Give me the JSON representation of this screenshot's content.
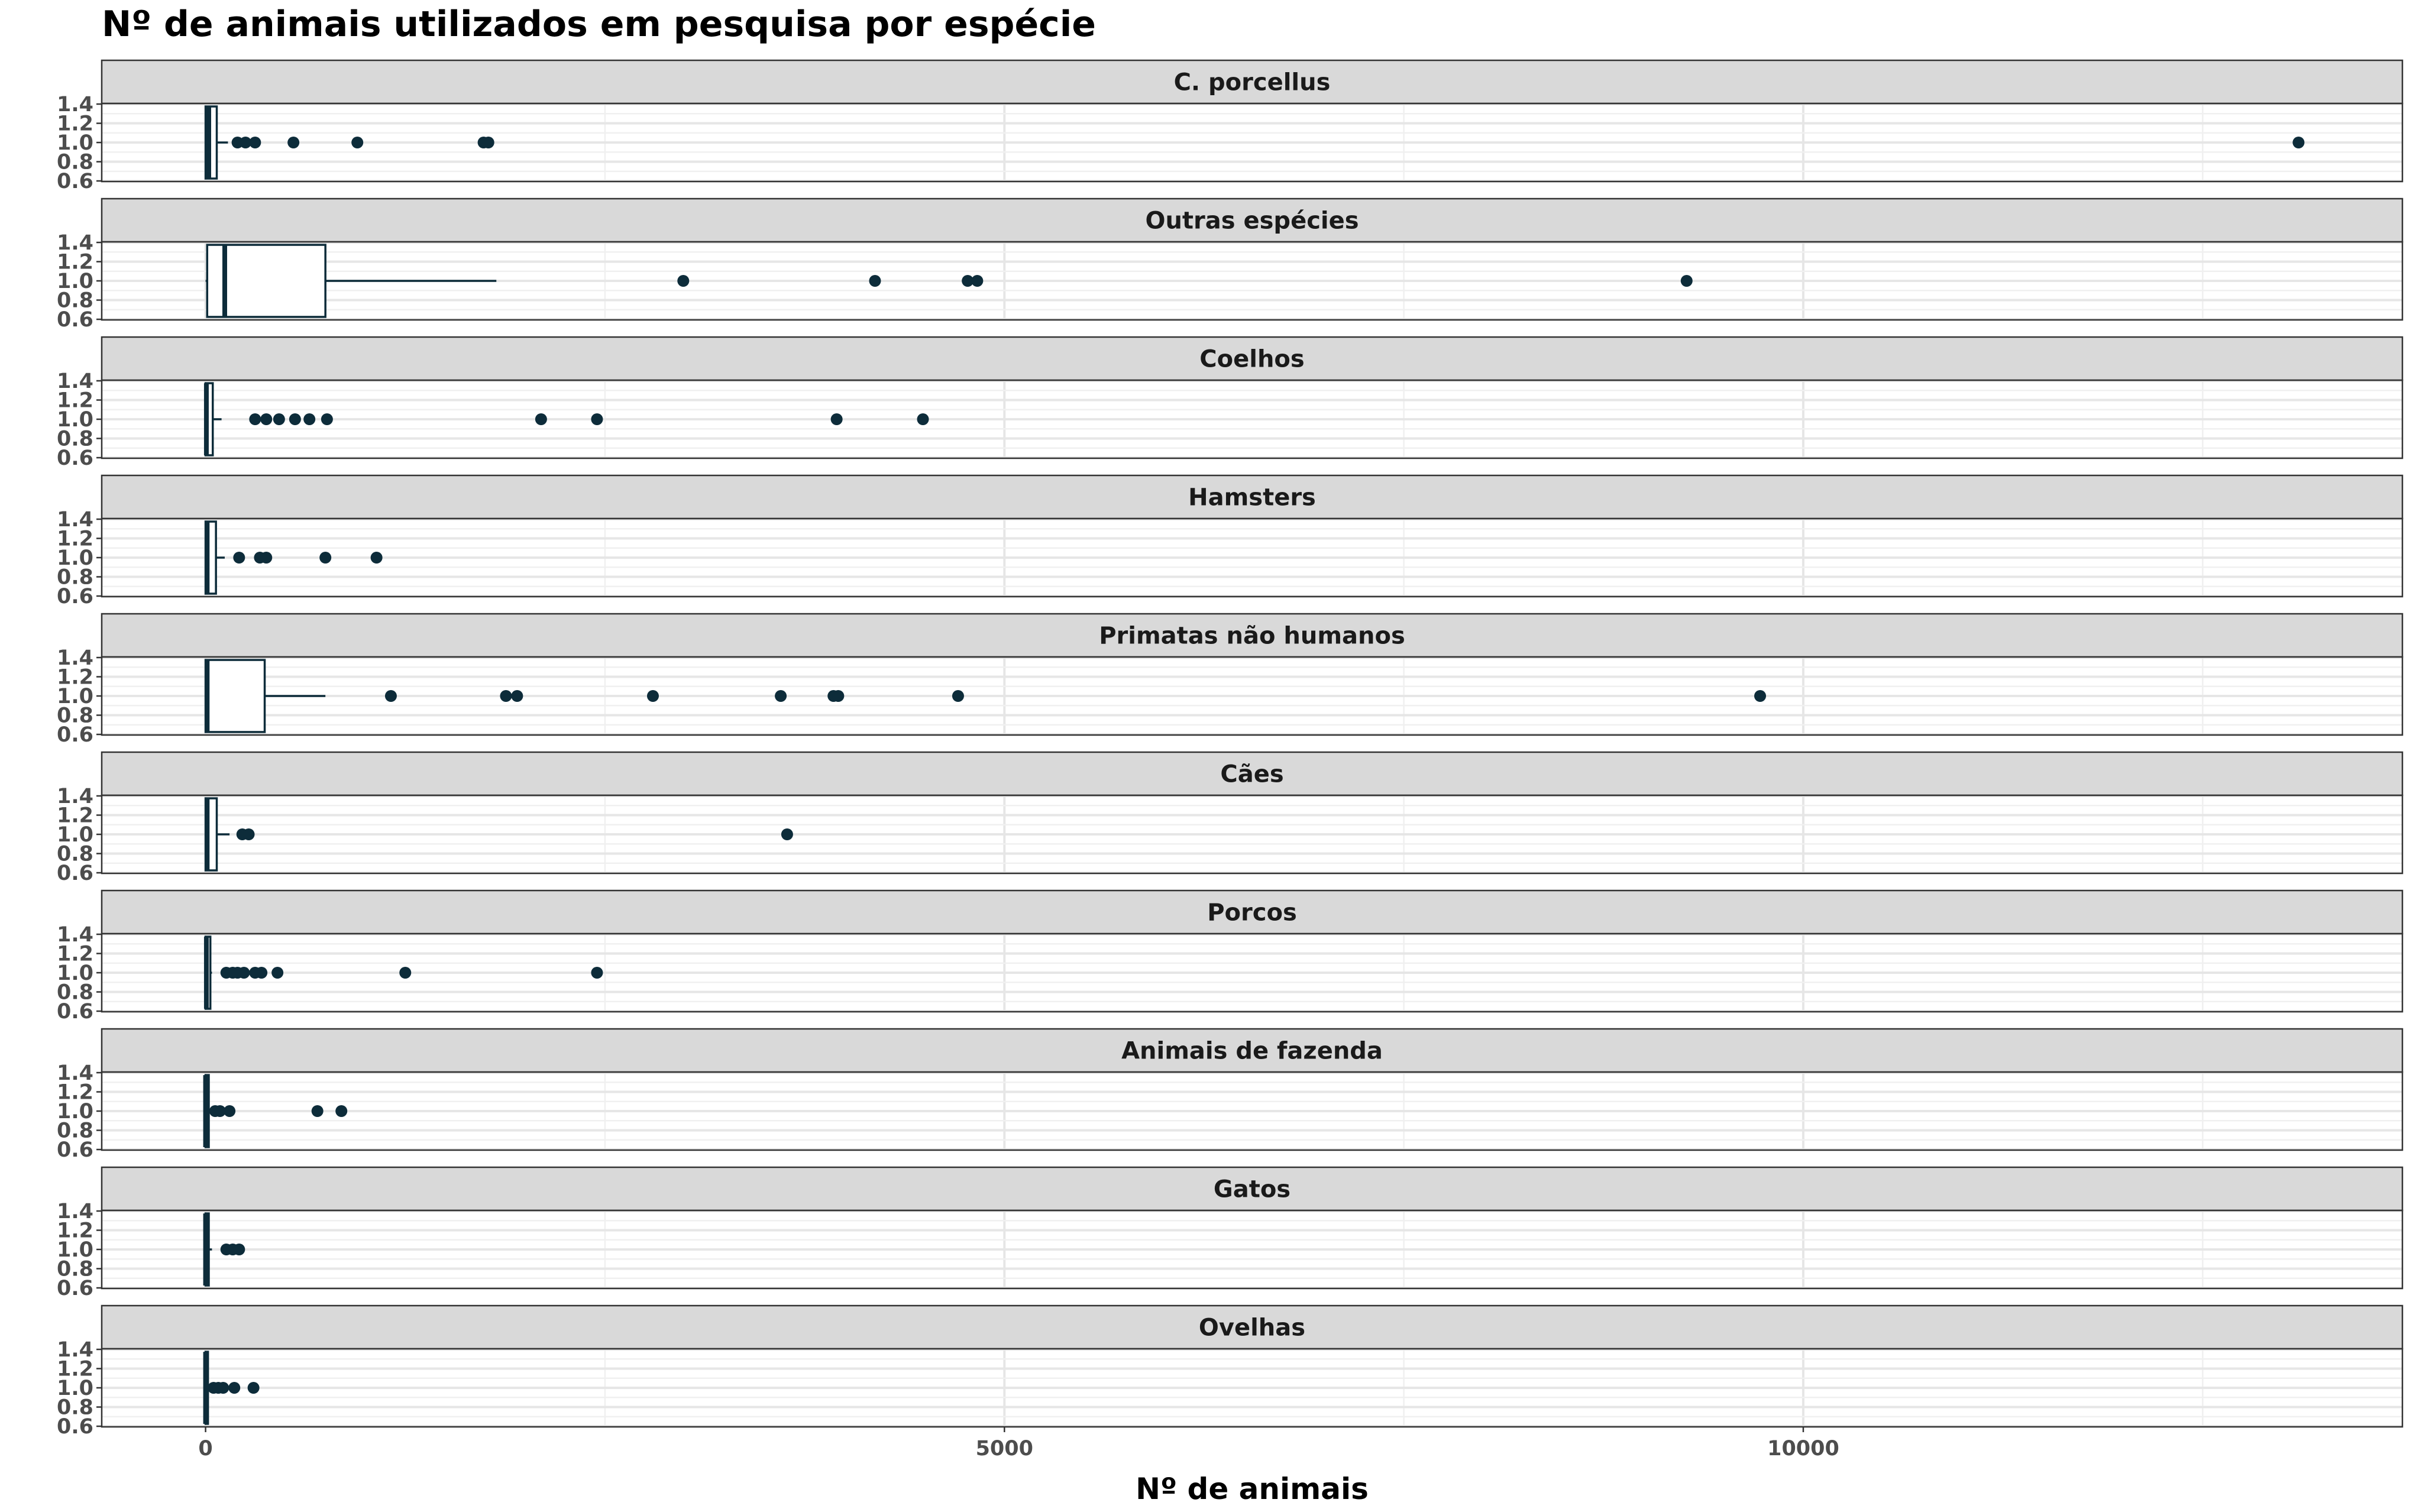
{
  "chart_data": {
    "type": "boxplot",
    "title": "Nº de animais utilizados em pesquisa por espécie",
    "xlabel": "Nº de animais",
    "ylabel": "",
    "xlim": [
      -650,
      13750
    ],
    "ylim": [
      0.6,
      1.4
    ],
    "x_ticks": [
      0,
      5000,
      10000
    ],
    "y_ticks": [
      "0.6",
      "0.8",
      "1.0",
      "1.2",
      "1.4"
    ],
    "grid": true,
    "box_color": "#0d2c3a",
    "facets": [
      {
        "name": "C. porcellus",
        "q1": 0,
        "median": 20,
        "q3": 70,
        "whisker_low": 0,
        "whisker_high": 140,
        "outliers": [
          200,
          250,
          310,
          550,
          950,
          1740,
          1770,
          13100
        ]
      },
      {
        "name": "Outras espécies",
        "q1": 10,
        "median": 120,
        "q3": 750,
        "whisker_low": 0,
        "whisker_high": 1820,
        "outliers": [
          2990,
          4190,
          4770,
          4830,
          9270
        ]
      },
      {
        "name": "Coelhos",
        "q1": 0,
        "median": 5,
        "q3": 45,
        "whisker_low": 0,
        "whisker_high": 100,
        "outliers": [
          310,
          380,
          460,
          560,
          650,
          760,
          2100,
          2450,
          3950,
          4490
        ]
      },
      {
        "name": "Hamsters",
        "q1": 0,
        "median": 10,
        "q3": 65,
        "whisker_low": 0,
        "whisker_high": 120,
        "outliers": [
          210,
          340,
          380,
          750,
          1070
        ]
      },
      {
        "name": "Primatas não humanos",
        "q1": 0,
        "median": 10,
        "q3": 370,
        "whisker_low": 0,
        "whisker_high": 750,
        "outliers": [
          1160,
          1880,
          1950,
          2800,
          3600,
          3930,
          3960,
          4710,
          9730
        ]
      },
      {
        "name": "Cães",
        "q1": 0,
        "median": 10,
        "q3": 70,
        "whisker_low": 0,
        "whisker_high": 150,
        "outliers": [
          230,
          270,
          3640
        ]
      },
      {
        "name": "Porcos",
        "q1": 0,
        "median": 5,
        "q3": 30,
        "whisker_low": 0,
        "whisker_high": 40,
        "outliers": [
          130,
          170,
          200,
          240,
          310,
          350,
          450,
          1250,
          2450
        ]
      },
      {
        "name": "Animais de fazenda",
        "q1": 0,
        "median": 0,
        "q3": 20,
        "whisker_low": 0,
        "whisker_high": 30,
        "outliers": [
          60,
          90,
          150,
          700,
          850
        ]
      },
      {
        "name": "Gatos",
        "q1": 0,
        "median": 0,
        "q3": 20,
        "whisker_low": 0,
        "whisker_high": 40,
        "outliers": [
          130,
          170,
          210
        ]
      },
      {
        "name": "Ovelhas",
        "q1": 0,
        "median": 0,
        "q3": 15,
        "whisker_low": 0,
        "whisker_high": 25,
        "outliers": [
          50,
          80,
          110,
          180,
          300
        ]
      }
    ]
  }
}
